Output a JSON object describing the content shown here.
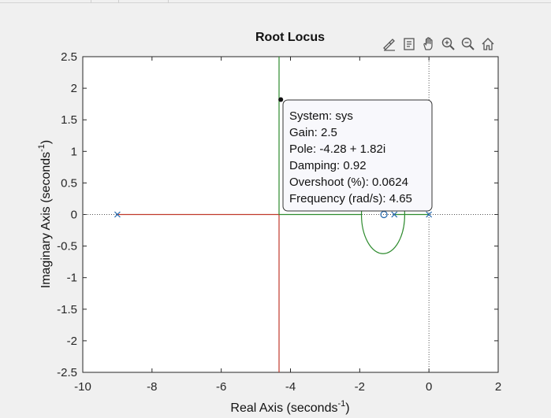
{
  "chart_data": {
    "type": "root_locus",
    "title": "Root Locus",
    "xlabel": "Real Axis (seconds",
    "ylabel": "Imaginary Axis (seconds",
    "label_exponent": "-1",
    "label_close": ")",
    "xlim": [
      -10,
      2
    ],
    "ylim": [
      -2.5,
      2.5
    ],
    "xticks": [
      -10,
      -8,
      -6,
      -4,
      -2,
      0,
      2
    ],
    "yticks": [
      -2.5,
      -2,
      -1.5,
      -1,
      -0.5,
      0,
      0.5,
      1,
      1.5,
      2,
      2.5
    ],
    "poles": [
      {
        "x": -9,
        "y": 0
      },
      {
        "x": -1,
        "y": 0
      },
      {
        "x": 0,
        "y": 0
      }
    ],
    "zeros": [
      {
        "x": -1.3,
        "y": 0
      }
    ],
    "branches": [
      {
        "color": "#c0392b",
        "points": [
          [
            -9,
            0
          ],
          [
            -4.33,
            0
          ],
          [
            -4.33,
            -2.5
          ]
        ]
      },
      {
        "color": "#2e8b2e",
        "points": [
          [
            -4.33,
            0
          ],
          [
            -4.33,
            2.5
          ]
        ]
      },
      {
        "color": "#2e8b2e",
        "points": [
          [
            -1,
            0
          ],
          [
            -0.7,
            0
          ],
          [
            -1.3,
            0
          ]
        ],
        "loop": true
      }
    ],
    "selected_point": {
      "x": -4.28,
      "y": 1.82
    },
    "datatip": {
      "system": "System: sys",
      "gain": "Gain: 2.5",
      "pole": "Pole: -4.28 + 1.82i",
      "damping": "Damping: 0.92",
      "overshoot": "Overshoot (%): 0.0624",
      "frequency": "Frequency (rad/s): 4.65"
    },
    "grid": false
  },
  "toolbar": {
    "icons": [
      "brush-icon",
      "datatip-icon",
      "pan-icon",
      "zoom-in-icon",
      "zoom-out-icon",
      "home-icon"
    ]
  },
  "colors": {
    "axes_bg": "#ffffff",
    "figure_bg": "#f0f0f0",
    "locus_red": "#c0392b",
    "locus_green": "#2e8b2e",
    "marker_blue": "#2166ac"
  }
}
